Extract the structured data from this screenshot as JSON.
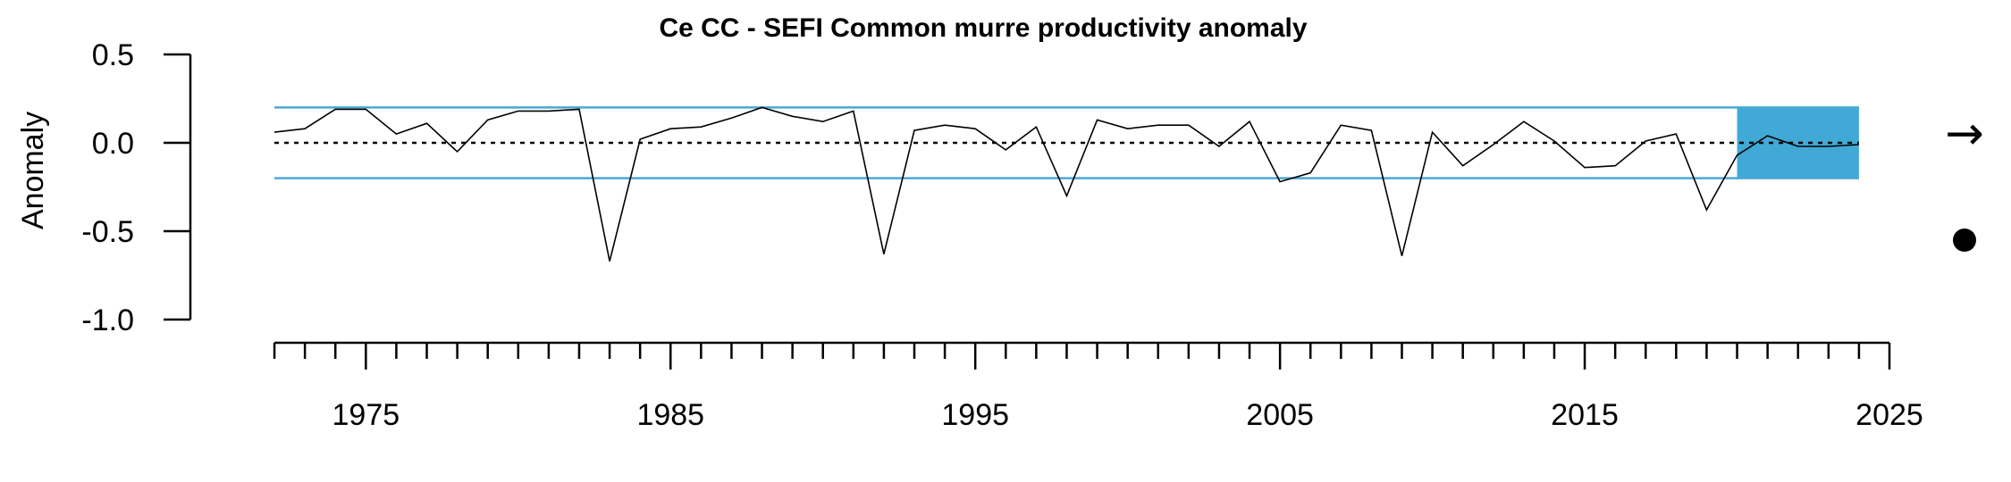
{
  "chart_data": {
    "type": "line",
    "title": "Ce CC - SEFI Common murre productivity anomaly",
    "ylabel": "Anomaly",
    "xlabel": "",
    "xlim": [
      1971.5,
      2025
    ],
    "ylim": [
      -1.0,
      0.5
    ],
    "yticks": [
      0.5,
      0.0,
      -0.5,
      -1.0
    ],
    "ytick_labels": [
      "0.5",
      "0.0",
      "-0.5",
      "-1.0"
    ],
    "xticks_labeled": [
      1975,
      1985,
      1995,
      2005,
      2015,
      2025
    ],
    "xtick_labels": [
      "1975",
      "1985",
      "1995",
      "2005",
      "2015",
      "2025"
    ],
    "xticks_minor_start": 1972,
    "xticks_minor_end": 2025,
    "mean": 0.0,
    "sd_upper": 0.2,
    "sd_lower": -0.2,
    "recent_window": [
      2020,
      2024
    ],
    "colors": {
      "sd_lines": "#4BA8D4",
      "recent_fill": "#41A9D5",
      "series": "#000000"
    },
    "series": [
      {
        "x": [
          1972,
          1973,
          1974,
          1975,
          1976,
          1977,
          1978,
          1979,
          1980,
          1981,
          1982,
          1983,
          1984,
          1985,
          1986,
          1987,
          1988,
          1989,
          1990,
          1991,
          1992,
          1993,
          1994,
          1995,
          1996,
          1997,
          1998,
          1999,
          2000,
          2001,
          2002,
          2003,
          2004,
          2005,
          2006,
          2007,
          2008,
          2009,
          2010,
          2011,
          2012,
          2013,
          2014,
          2015,
          2016,
          2017,
          2018,
          2019,
          2020,
          2021,
          2022,
          2023,
          2024
        ],
        "values": [
          0.06,
          0.08,
          0.19,
          0.19,
          0.05,
          0.11,
          -0.05,
          0.13,
          0.18,
          0.18,
          0.19,
          -0.67,
          0.02,
          0.08,
          0.09,
          0.14,
          0.2,
          0.15,
          0.12,
          0.18,
          -0.63,
          0.07,
          0.1,
          0.08,
          -0.04,
          0.09,
          -0.3,
          0.13,
          0.08,
          0.1,
          0.1,
          -0.02,
          0.12,
          -0.22,
          -0.17,
          0.1,
          0.07,
          -0.64,
          0.06,
          -0.13,
          -0.01,
          0.12,
          0.01,
          -0.14,
          -0.13,
          0.01,
          0.05,
          -0.38,
          -0.07,
          0.04,
          -0.02,
          -0.02,
          -0.01
        ]
      }
    ],
    "trend_symbol": "→",
    "trend_icon": "right-arrow-icon",
    "mean_indicator_icon": "filled-circle-icon"
  }
}
